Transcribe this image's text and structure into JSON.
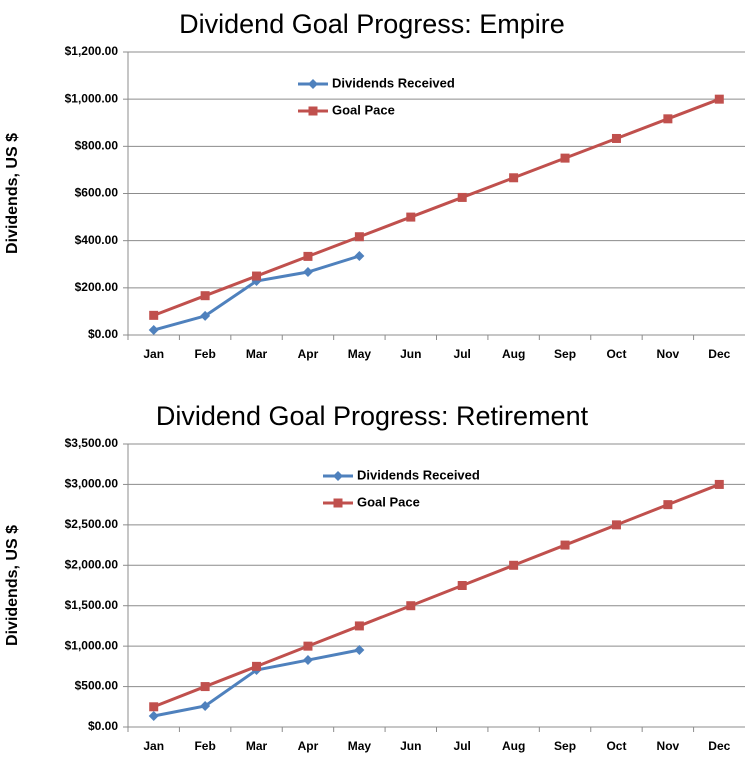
{
  "chart_data": [
    {
      "type": "line",
      "title": "Dividend Goal Progress: Empire",
      "ylabel": "Dividends, US $",
      "categories": [
        "Jan",
        "Feb",
        "Mar",
        "Apr",
        "May",
        "Jun",
        "Jul",
        "Aug",
        "Sep",
        "Oct",
        "Nov",
        "Dec"
      ],
      "series": [
        {
          "name": "Dividends Received",
          "color": "#4f81bd",
          "values": [
            21,
            81,
            229,
            267,
            335,
            null,
            null,
            null,
            null,
            null,
            null,
            null
          ]
        },
        {
          "name": "Goal Pace",
          "color": "#c0504d",
          "values": [
            83.33,
            166.67,
            250,
            333.33,
            416.67,
            500,
            583.33,
            666.67,
            750,
            833.33,
            916.67,
            1000
          ]
        }
      ],
      "ylim": [
        0,
        1200
      ],
      "yticks": [
        {
          "value": 0,
          "label": "$0.00"
        },
        {
          "value": 200,
          "label": "$200.00"
        },
        {
          "value": 400,
          "label": "$400.00"
        },
        {
          "value": 600,
          "label": "$600.00"
        },
        {
          "value": 800,
          "label": "$800.00"
        },
        {
          "value": 1000,
          "label": "$1,000.00"
        },
        {
          "value": 1200,
          "label": "$1,200.00"
        }
      ],
      "grid": true,
      "legend": "top"
    },
    {
      "type": "line",
      "title": "Dividend Goal Progress: Retirement",
      "ylabel": "Dividends, US $",
      "categories": [
        "Jan",
        "Feb",
        "Mar",
        "Apr",
        "May",
        "Jun",
        "Jul",
        "Aug",
        "Sep",
        "Oct",
        "Nov",
        "Dec"
      ],
      "series": [
        {
          "name": "Dividends Received",
          "color": "#4f81bd",
          "values": [
            136,
            260,
            705,
            828,
            952,
            null,
            null,
            null,
            null,
            null,
            null,
            null
          ]
        },
        {
          "name": "Goal Pace",
          "color": "#c0504d",
          "values": [
            250,
            500,
            750,
            1000,
            1250,
            1500,
            1750,
            2000,
            2250,
            2500,
            2750,
            3000
          ]
        }
      ],
      "ylim": [
        0,
        3500
      ],
      "yticks": [
        {
          "value": 0,
          "label": "$0.00"
        },
        {
          "value": 500,
          "label": "$500.00"
        },
        {
          "value": 1000,
          "label": "$1,000.00"
        },
        {
          "value": 1500,
          "label": "$1,500.00"
        },
        {
          "value": 2000,
          "label": "$2,000.00"
        },
        {
          "value": 2500,
          "label": "$2,500.00"
        },
        {
          "value": 3000,
          "label": "$3,000.00"
        },
        {
          "value": 3500,
          "label": "$3,500.00"
        }
      ],
      "grid": true,
      "legend": "top"
    }
  ]
}
